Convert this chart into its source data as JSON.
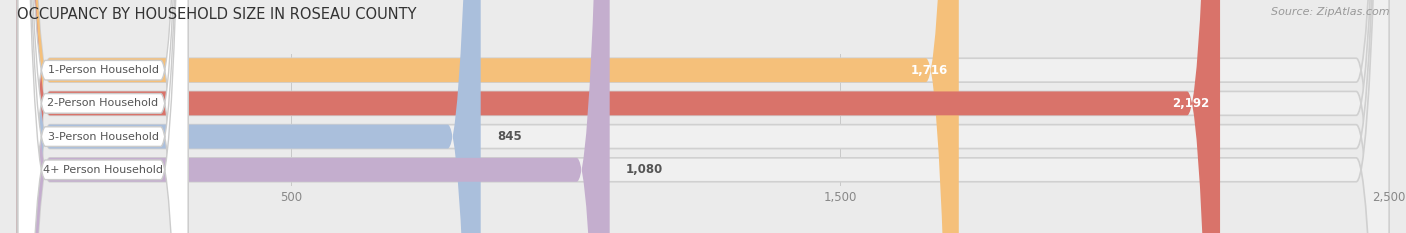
{
  "title": "OCCUPANCY BY HOUSEHOLD SIZE IN ROSEAU COUNTY",
  "source": "Source: ZipAtlas.com",
  "categories": [
    "1-Person Household",
    "2-Person Household",
    "3-Person Household",
    "4+ Person Household"
  ],
  "values": [
    1716,
    2192,
    845,
    1080
  ],
  "bar_colors": [
    "#F5C07A",
    "#D9736A",
    "#AABFDC",
    "#C4AECE"
  ],
  "xlim": [
    0,
    2500
  ],
  "xticks": [
    500,
    1500,
    2500
  ],
  "title_fontsize": 10.5,
  "source_fontsize": 8,
  "background_color": "#ebebeb",
  "bar_bg_color": "#d8d8d8",
  "bar_row_bg": "#f5f5f5"
}
